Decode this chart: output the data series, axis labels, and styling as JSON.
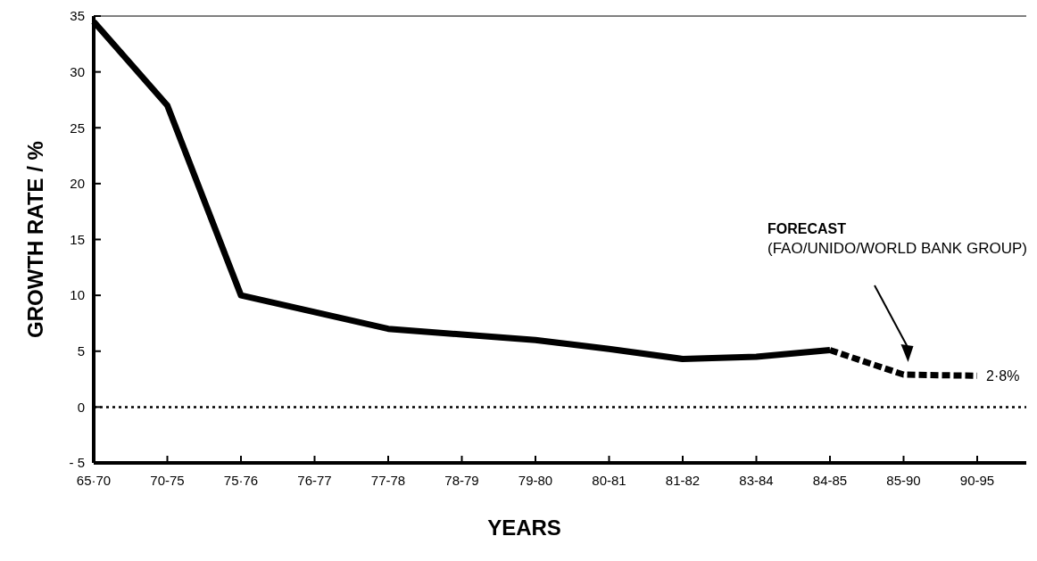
{
  "chart_data": {
    "type": "line",
    "xlabel": "YEARS",
    "ylabel": "GROWTH RATE / %",
    "categories": [
      "65·70",
      "70-75",
      "75·76",
      "76-77",
      "77-78",
      "78-79",
      "79-80",
      "80-81",
      "81-82",
      "83-84",
      "84-85",
      "85-90",
      "90-95"
    ],
    "series": [
      {
        "color": "#000000",
        "line_style": "solid",
        "values": [
          34.5,
          27,
          10,
          8.5,
          7,
          6.5,
          6,
          5.2,
          4.3,
          4.5,
          5.1,
          null,
          null
        ]
      },
      {
        "color": "#000000",
        "line_style": "dashed",
        "values": [
          null,
          null,
          null,
          null,
          null,
          null,
          null,
          null,
          null,
          null,
          5.1,
          2.9,
          2.8
        ]
      }
    ],
    "ylim": [
      -5,
      35
    ],
    "yticks": [
      {
        "value": -5,
        "label": "- 5"
      },
      0,
      5,
      10,
      15,
      20,
      25,
      30,
      35
    ],
    "ref_lines": [
      {
        "axis": "y",
        "value": 0,
        "line_style": "dotted",
        "color": "#000000"
      }
    ],
    "annotations": [
      "FORECAST",
      "(FAO/UNIDO/WORLD BANK GROUP)",
      "2·8%"
    ],
    "grid": false,
    "marker": "none"
  }
}
